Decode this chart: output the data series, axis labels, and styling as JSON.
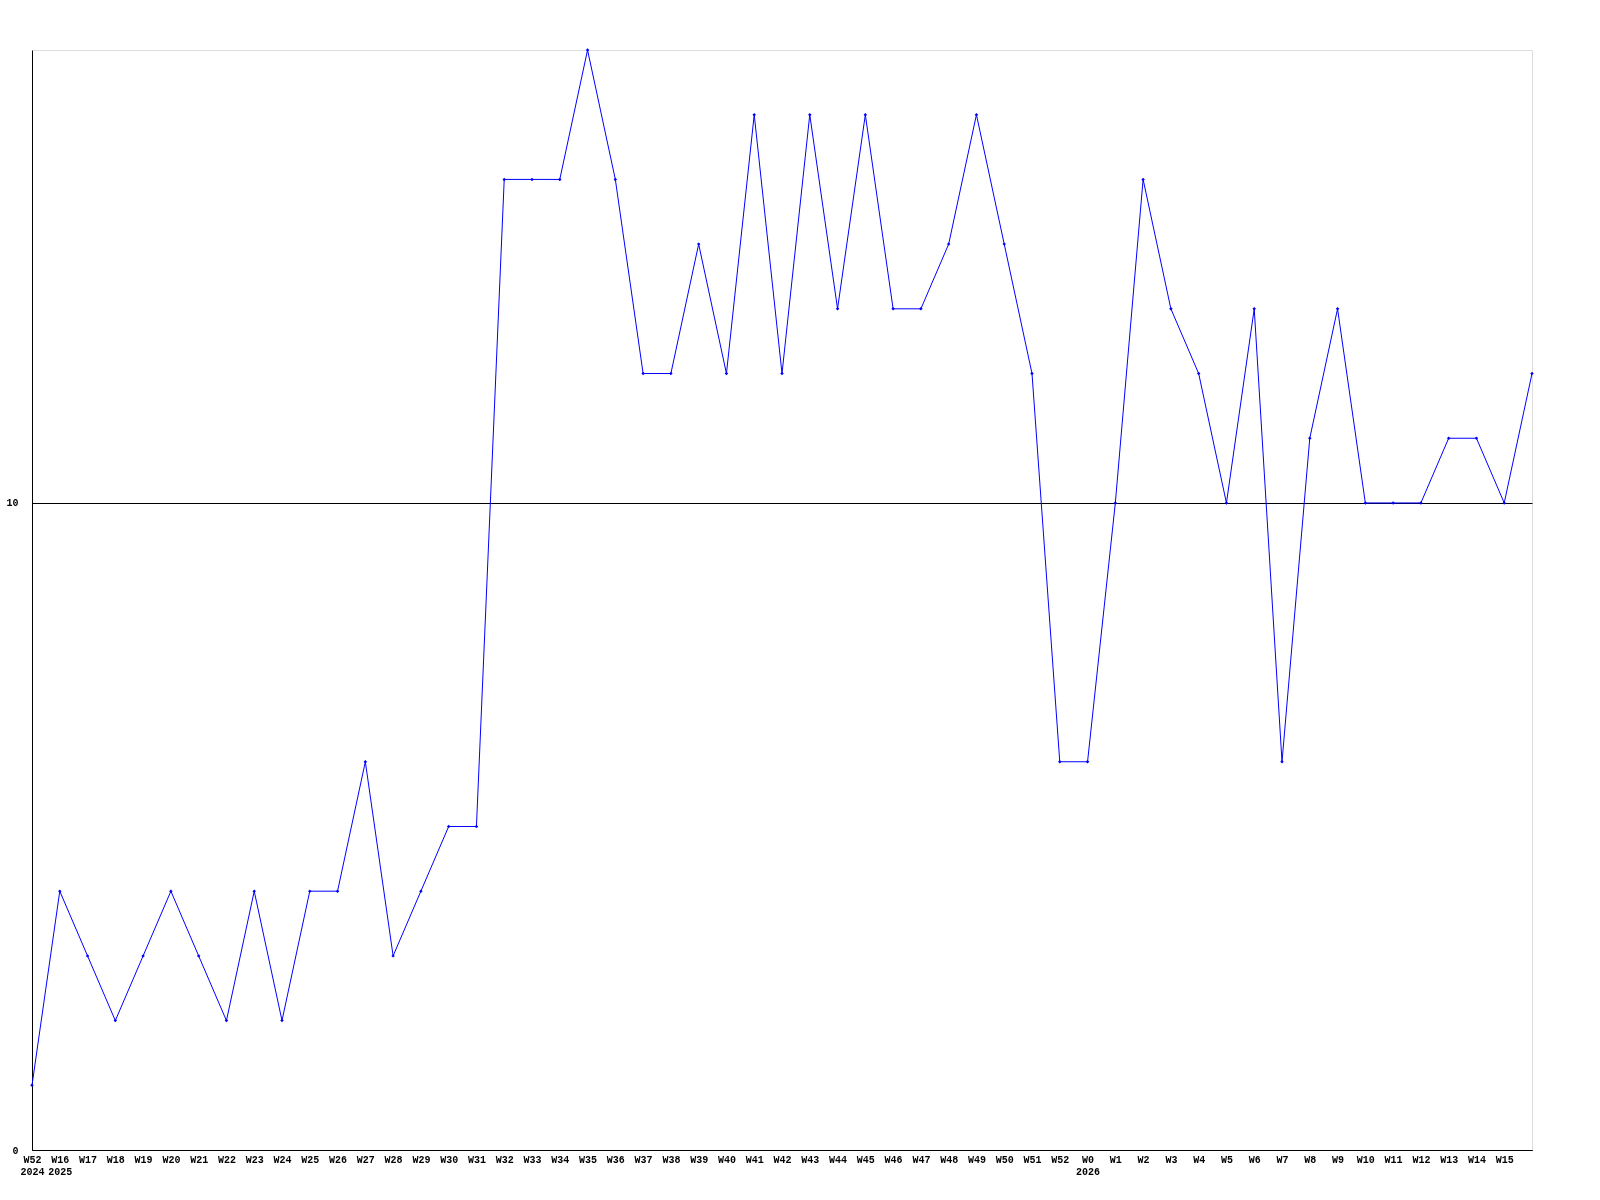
{
  "chart_data": {
    "type": "line",
    "categories": [
      "W52\n2024",
      "W16\n2025",
      "W17",
      "W18",
      "W19",
      "W20",
      "W21",
      "W22",
      "W23",
      "W24",
      "W25",
      "W26",
      "W27",
      "W28",
      "W29",
      "W30",
      "W31",
      "W32",
      "W33",
      "W34",
      "W35",
      "W36",
      "W37",
      "W38",
      "W39",
      "W40",
      "W41",
      "W42",
      "W43",
      "W44",
      "W45",
      "W46",
      "W47",
      "W48",
      "W49",
      "W50",
      "W51",
      "W52",
      "W0\n2026",
      "W1",
      "W2",
      "W3",
      "W4",
      "W5",
      "W6",
      "W7",
      "W8",
      "W9",
      "W10",
      "W11",
      "W12",
      "W13",
      "W14",
      "W15",
      null
    ],
    "series": [
      {
        "color": "#0000ff",
        "values": [
          1,
          4,
          3,
          2,
          3,
          4,
          3,
          2,
          4,
          2,
          4,
          4,
          6,
          3,
          4,
          5,
          5,
          15,
          15,
          15,
          17,
          15,
          12,
          12,
          14,
          12,
          16,
          12,
          16,
          13,
          16,
          13,
          13,
          14,
          16,
          14,
          12,
          6,
          6,
          10,
          15,
          13,
          12,
          10,
          13,
          6,
          11,
          13,
          10,
          10,
          10,
          11,
          11,
          10,
          12
        ]
      }
    ],
    "ylim": [
      0,
      17
    ],
    "yticks": [
      0,
      10
    ],
    "grid": "y",
    "marker": "diamond",
    "line_style": "solid"
  }
}
